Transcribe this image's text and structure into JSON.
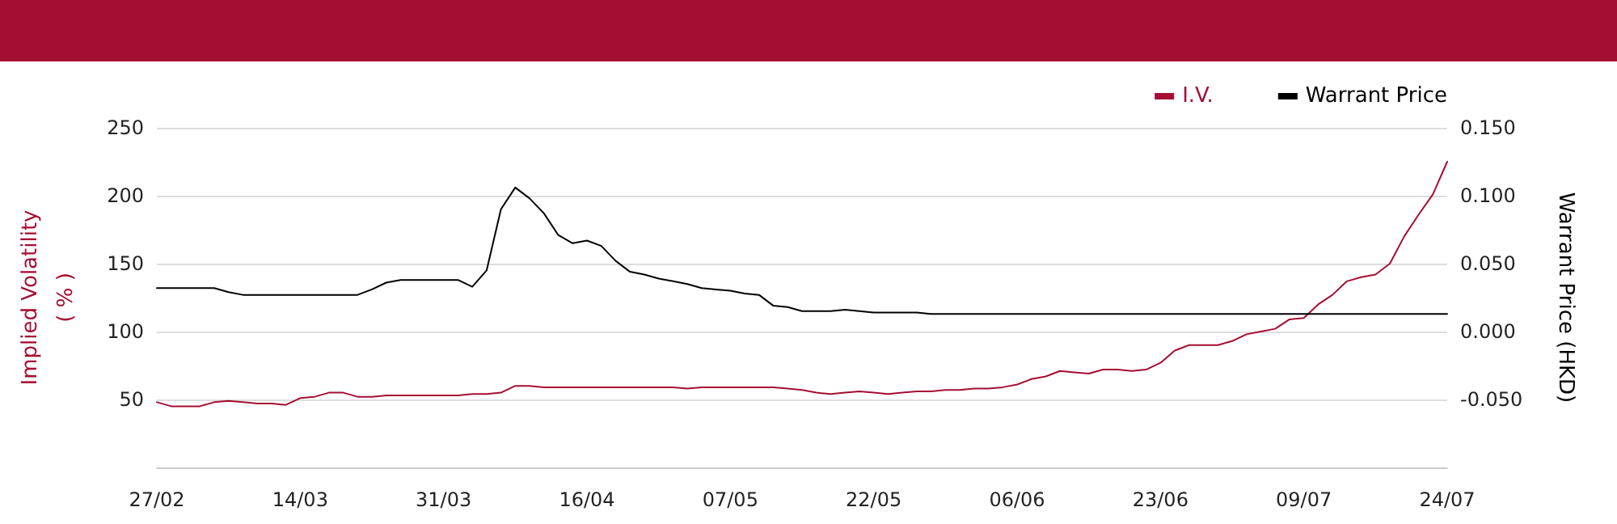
{
  "chart_data": {
    "type": "line",
    "xlabel": null,
    "ylabel": "Implied Volatility\n( % )",
    "y2label": "Warrant Price (HKD)",
    "categories": [
      "27/02",
      null,
      null,
      null,
      null,
      null,
      null,
      null,
      null,
      null,
      "14/03",
      null,
      null,
      null,
      null,
      null,
      null,
      null,
      null,
      null,
      "31/03",
      null,
      null,
      null,
      null,
      null,
      null,
      null,
      null,
      null,
      "16/04",
      null,
      null,
      null,
      null,
      null,
      null,
      null,
      null,
      null,
      "07/05",
      null,
      null,
      null,
      null,
      null,
      null,
      null,
      null,
      null,
      "22/05",
      null,
      null,
      null,
      null,
      null,
      null,
      null,
      null,
      null,
      "06/06",
      null,
      null,
      null,
      null,
      null,
      null,
      null,
      null,
      null,
      "23/06",
      null,
      null,
      null,
      null,
      null,
      null,
      null,
      null,
      null,
      "09/07",
      null,
      null,
      null,
      null,
      null,
      null,
      null,
      null,
      null,
      "24/07"
    ],
    "series": [
      {
        "name": "I.V.",
        "color": "#a50e33",
        "values": [
          48,
          45,
          45,
          45,
          48,
          49,
          48,
          47,
          47,
          46,
          51,
          52,
          55,
          55,
          52,
          52,
          53,
          53,
          53,
          53,
          53,
          53,
          54,
          54,
          55,
          60,
          60,
          59,
          59,
          59,
          59,
          59,
          59,
          59,
          59,
          59,
          59,
          58,
          59,
          59,
          59,
          59,
          59,
          59,
          58,
          57,
          55,
          54,
          55,
          56,
          55,
          54,
          55,
          56,
          56,
          57,
          57,
          58,
          58,
          59,
          61,
          65,
          67,
          71,
          70,
          69,
          72,
          72,
          71,
          72,
          77,
          86,
          90,
          90,
          90,
          93,
          98,
          100,
          102,
          109,
          110,
          120,
          127,
          137,
          140,
          142,
          150,
          170,
          186,
          201,
          225
        ]
      },
      {
        "name": "Warrant Price",
        "color": "#000000",
        "axis": "y2",
        "values": [
          0.032,
          0.032,
          0.032,
          0.032,
          0.032,
          0.029,
          0.027,
          0.027,
          0.027,
          0.027,
          0.027,
          0.027,
          0.027,
          0.027,
          0.027,
          0.031,
          0.036,
          0.038,
          0.038,
          0.038,
          0.038,
          0.038,
          0.033,
          0.045,
          0.09,
          0.106,
          0.098,
          0.087,
          0.071,
          0.065,
          0.067,
          0.063,
          0.052,
          0.044,
          0.042,
          0.039,
          0.037,
          0.035,
          0.032,
          0.031,
          0.03,
          0.028,
          0.027,
          0.019,
          0.018,
          0.015,
          0.015,
          0.015,
          0.016,
          0.015,
          0.014,
          0.014,
          0.014,
          0.014,
          0.013,
          0.013,
          0.013,
          0.013,
          0.013,
          0.013,
          0.013,
          0.013,
          0.013,
          0.013,
          0.013,
          0.013,
          0.013,
          0.013,
          0.013,
          0.013,
          0.013,
          0.013,
          0.013,
          0.013,
          0.013,
          0.013,
          0.013,
          0.013,
          0.013,
          0.013,
          0.013,
          0.013,
          0.013,
          0.013,
          0.013,
          0.013,
          0.013,
          0.013,
          0.013,
          0.013,
          0.013
        ]
      }
    ],
    "ylim": [
      0,
      250
    ],
    "yticks": [
      50,
      100,
      150,
      200,
      250
    ],
    "y2lim": [
      -0.1,
      0.15
    ],
    "y2ticks": [
      {
        "value": -0.05,
        "label": "-0.050"
      },
      {
        "value": 0,
        "label": "0.000"
      },
      {
        "value": 0.05,
        "label": "0.050"
      },
      {
        "value": 0.1,
        "label": "0.100"
      },
      {
        "value": 0.15,
        "label": "0.150"
      }
    ],
    "grid": "y",
    "legend": "top right",
    "marker": "none",
    "line_style": "solid"
  }
}
